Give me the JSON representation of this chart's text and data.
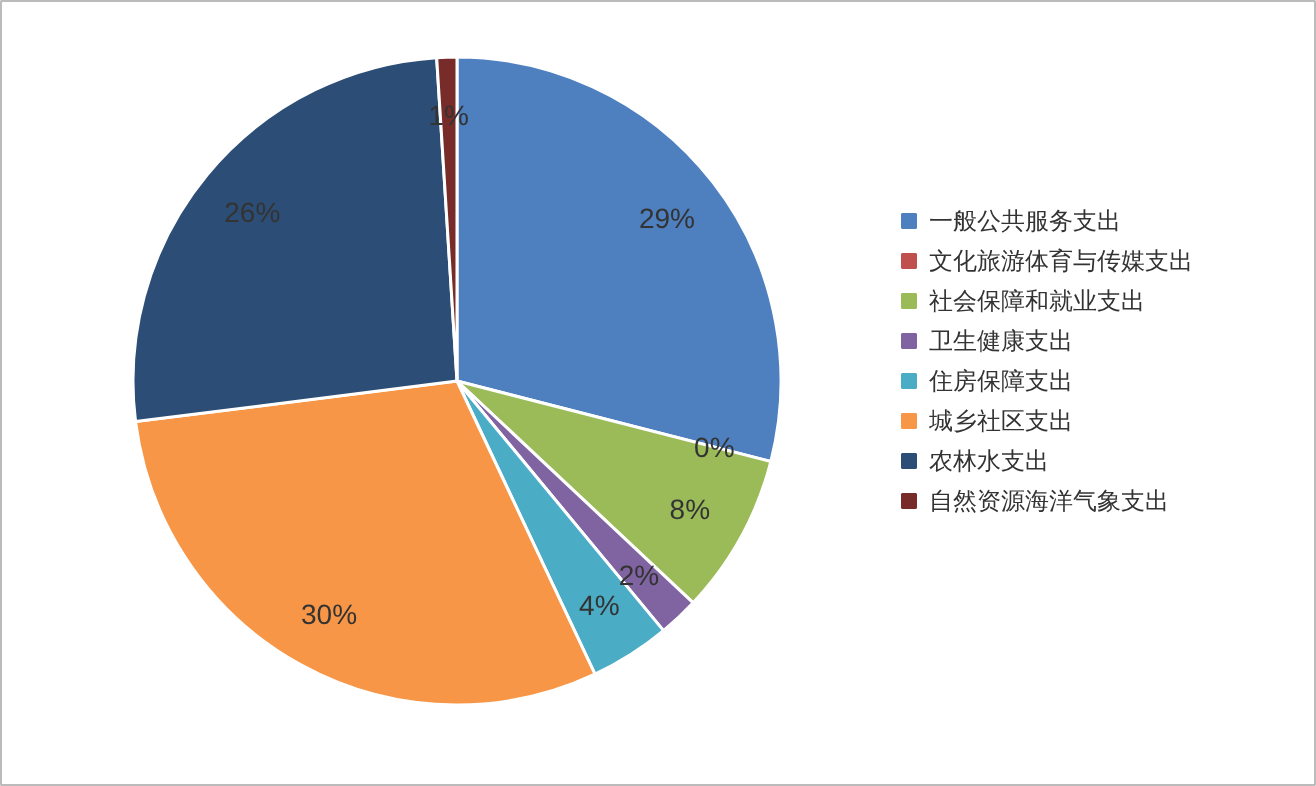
{
  "chart_data": {
    "type": "pie",
    "categories": [
      "一般公共服务支出",
      "文化旅游体育与传媒支出",
      "社会保障和就业支出",
      "卫生健康支出",
      "住房保障支出",
      "城乡社区支出",
      "农林水支出",
      "自然资源海洋气象支出"
    ],
    "values": [
      29,
      0,
      8,
      2,
      4,
      30,
      26,
      1
    ],
    "colors": [
      "#4e7fbf",
      "#c0504d",
      "#9bbb59",
      "#8064a2",
      "#4bacc6",
      "#f79646",
      "#2c4d75",
      "#772c2a"
    ],
    "value_labels": [
      "29%",
      "0%",
      "8%",
      "2%",
      "4%",
      "30%",
      "26%",
      "1%"
    ],
    "legend": "right"
  }
}
